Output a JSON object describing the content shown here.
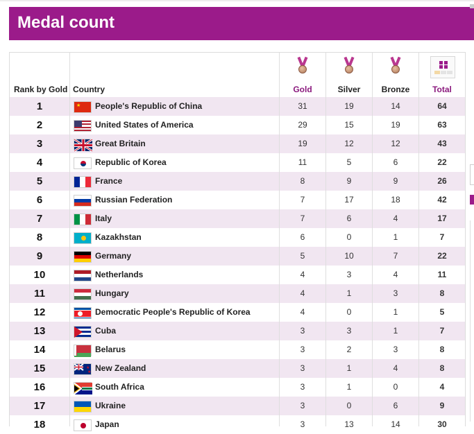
{
  "page": {
    "title": "Medal count"
  },
  "table": {
    "headers": {
      "rank": "Rank by Gold",
      "country": "Country",
      "gold": "Gold",
      "silver": "Silver",
      "bronze": "Bronze",
      "total": "Total"
    },
    "rows": [
      {
        "rank": "1",
        "country": "People's Republic of China",
        "flag": "china-flag-icon",
        "gold": "31",
        "silver": "19",
        "bronze": "14",
        "total": "64"
      },
      {
        "rank": "2",
        "country": "United States of America",
        "flag": "usa-flag-icon",
        "gold": "29",
        "silver": "15",
        "bronze": "19",
        "total": "63"
      },
      {
        "rank": "3",
        "country": "Great Britain",
        "flag": "great-britain-flag-icon",
        "gold": "19",
        "silver": "12",
        "bronze": "12",
        "total": "43"
      },
      {
        "rank": "4",
        "country": "Republic of Korea",
        "flag": "korea-flag-icon",
        "gold": "11",
        "silver": "5",
        "bronze": "6",
        "total": "22"
      },
      {
        "rank": "5",
        "country": "France",
        "flag": "france-flag-icon",
        "gold": "8",
        "silver": "9",
        "bronze": "9",
        "total": "26"
      },
      {
        "rank": "6",
        "country": "Russian Federation",
        "flag": "russia-flag-icon",
        "gold": "7",
        "silver": "17",
        "bronze": "18",
        "total": "42"
      },
      {
        "rank": "7",
        "country": "Italy",
        "flag": "italy-flag-icon",
        "gold": "7",
        "silver": "6",
        "bronze": "4",
        "total": "17"
      },
      {
        "rank": "8",
        "country": "Kazakhstan",
        "flag": "kazakhstan-flag-icon",
        "gold": "6",
        "silver": "0",
        "bronze": "1",
        "total": "7"
      },
      {
        "rank": "9",
        "country": "Germany",
        "flag": "germany-flag-icon",
        "gold": "5",
        "silver": "10",
        "bronze": "7",
        "total": "22"
      },
      {
        "rank": "10",
        "country": "Netherlands",
        "flag": "netherlands-flag-icon",
        "gold": "4",
        "silver": "3",
        "bronze": "4",
        "total": "11"
      },
      {
        "rank": "11",
        "country": "Hungary",
        "flag": "hungary-flag-icon",
        "gold": "4",
        "silver": "1",
        "bronze": "3",
        "total": "8"
      },
      {
        "rank": "12",
        "country": "Democratic People's Republic of Korea",
        "flag": "north-korea-flag-icon",
        "gold": "4",
        "silver": "0",
        "bronze": "1",
        "total": "5"
      },
      {
        "rank": "13",
        "country": "Cuba",
        "flag": "cuba-flag-icon",
        "gold": "3",
        "silver": "3",
        "bronze": "1",
        "total": "7"
      },
      {
        "rank": "14",
        "country": "Belarus",
        "flag": "belarus-flag-icon",
        "gold": "3",
        "silver": "2",
        "bronze": "3",
        "total": "8"
      },
      {
        "rank": "15",
        "country": "New Zealand",
        "flag": "new-zealand-flag-icon",
        "gold": "3",
        "silver": "1",
        "bronze": "4",
        "total": "8"
      },
      {
        "rank": "16",
        "country": "South Africa",
        "flag": "south-africa-flag-icon",
        "gold": "3",
        "silver": "1",
        "bronze": "0",
        "total": "4"
      },
      {
        "rank": "17",
        "country": "Ukraine",
        "flag": "ukraine-flag-icon",
        "gold": "3",
        "silver": "0",
        "bronze": "6",
        "total": "9"
      },
      {
        "rank": "18",
        "country": "Japan",
        "flag": "japan-flag-icon",
        "gold": "3",
        "silver": "13",
        "bronze": "14",
        "total": "30"
      }
    ]
  },
  "colors": {
    "brand": "#9b1b8a",
    "row_alt": "#f1e6f1",
    "header_accent": "#8b1a7e"
  }
}
